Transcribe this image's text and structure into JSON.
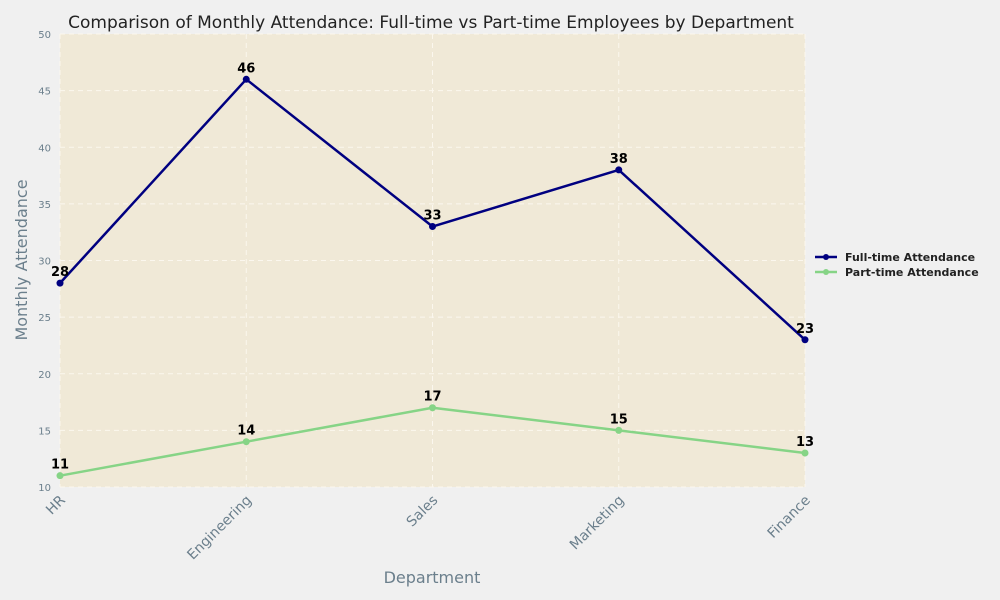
{
  "chart_data": {
    "type": "line",
    "title": "Comparison of Monthly Attendance: Full-time vs Part-time Employees by Department",
    "xlabel": "Department",
    "ylabel": "Monthly Attendance",
    "categories": [
      "HR",
      "Engineering",
      "Sales",
      "Marketing",
      "Finance"
    ],
    "series": [
      {
        "name": "Full-time Attendance",
        "values": [
          28,
          46,
          33,
          38,
          23
        ],
        "color": "#000080"
      },
      {
        "name": "Part-time Attendance",
        "values": [
          11,
          14,
          17,
          15,
          13
        ],
        "color": "#86d486"
      }
    ],
    "ylim": [
      10,
      50
    ],
    "yticks": [
      10,
      15,
      20,
      25,
      30,
      35,
      40,
      45,
      50
    ],
    "grid": true,
    "legend_position": "right",
    "plot_background": "#f0e9d7",
    "figure_background": "#f0f0f0"
  }
}
